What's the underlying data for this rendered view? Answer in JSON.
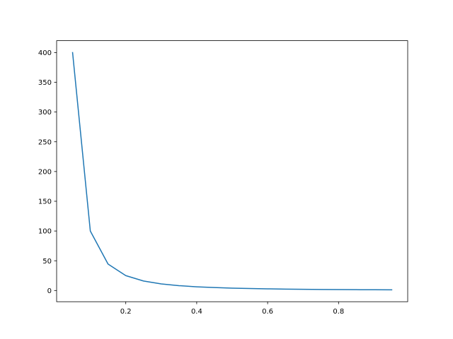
{
  "chart_data": {
    "type": "line",
    "title": "",
    "xlabel": "",
    "ylabel": "",
    "xlim": [
      0.005,
      0.995
    ],
    "ylim": [
      -18.84,
      419.94
    ],
    "grid": false,
    "x_ticks": [
      0.2,
      0.4,
      0.6,
      0.8
    ],
    "x_tick_labels": [
      "0.2",
      "0.4",
      "0.6",
      "0.8"
    ],
    "y_ticks": [
      0,
      50,
      100,
      150,
      200,
      250,
      300,
      350,
      400
    ],
    "y_tick_labels": [
      "0",
      "50",
      "100",
      "150",
      "200",
      "250",
      "300",
      "350",
      "400"
    ],
    "series": [
      {
        "color": "#1f77b4",
        "x": [
          0.05,
          0.1,
          0.15,
          0.2,
          0.25,
          0.3,
          0.35,
          0.4,
          0.45,
          0.5,
          0.55,
          0.6,
          0.65,
          0.7,
          0.75,
          0.8,
          0.85,
          0.9,
          0.95
        ],
        "y": [
          400,
          100,
          44.44,
          25,
          16,
          11.11,
          8.16,
          6.25,
          4.94,
          4,
          3.31,
          2.78,
          2.37,
          2.04,
          1.78,
          1.56,
          1.38,
          1.23,
          1.11
        ]
      }
    ]
  }
}
